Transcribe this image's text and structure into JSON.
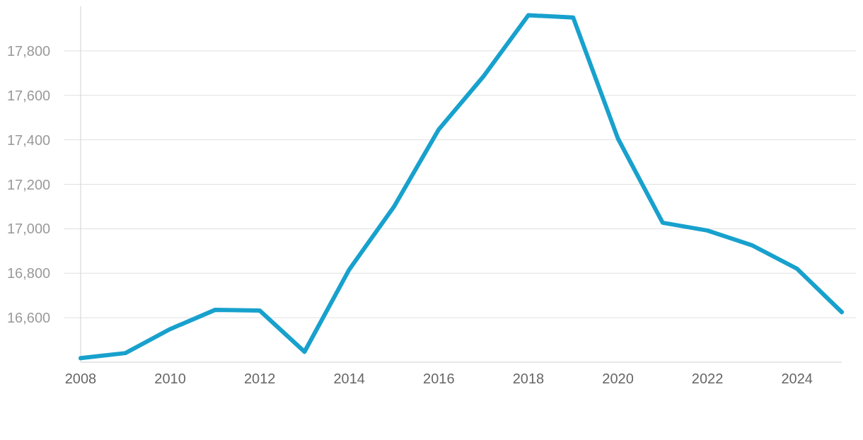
{
  "chart_data": {
    "type": "line",
    "x": [
      2008,
      2009,
      2010,
      2011,
      2012,
      2013,
      2014,
      2015,
      2016,
      2017,
      2018,
      2019,
      2020,
      2021,
      2022,
      2023,
      2024,
      2025
    ],
    "series": [
      {
        "color": "#18a1cd",
        "values": [
          16418,
          16441,
          16549,
          16635,
          16632,
          16447,
          16817,
          17100,
          17447,
          17686,
          17960,
          17950,
          17406,
          17027,
          16992,
          16925,
          16820,
          16625
        ]
      }
    ],
    "xlim": [
      2008,
      2025
    ],
    "xticks": [
      2008,
      2010,
      2012,
      2014,
      2016,
      2018,
      2020,
      2022,
      2024
    ],
    "ylim": [
      16400,
      18000
    ],
    "yticks": [
      {
        "value": 16600,
        "label": "16,600"
      },
      {
        "value": 16800,
        "label": "16,800"
      },
      {
        "value": 17000,
        "label": "17,000"
      },
      {
        "value": 17200,
        "label": "17,200"
      },
      {
        "value": 17400,
        "label": "17,400"
      },
      {
        "value": 17600,
        "label": "17,600"
      },
      {
        "value": 17800,
        "label": "17,800"
      }
    ],
    "grid": "y",
    "marker": "none",
    "line_style": "solid"
  }
}
